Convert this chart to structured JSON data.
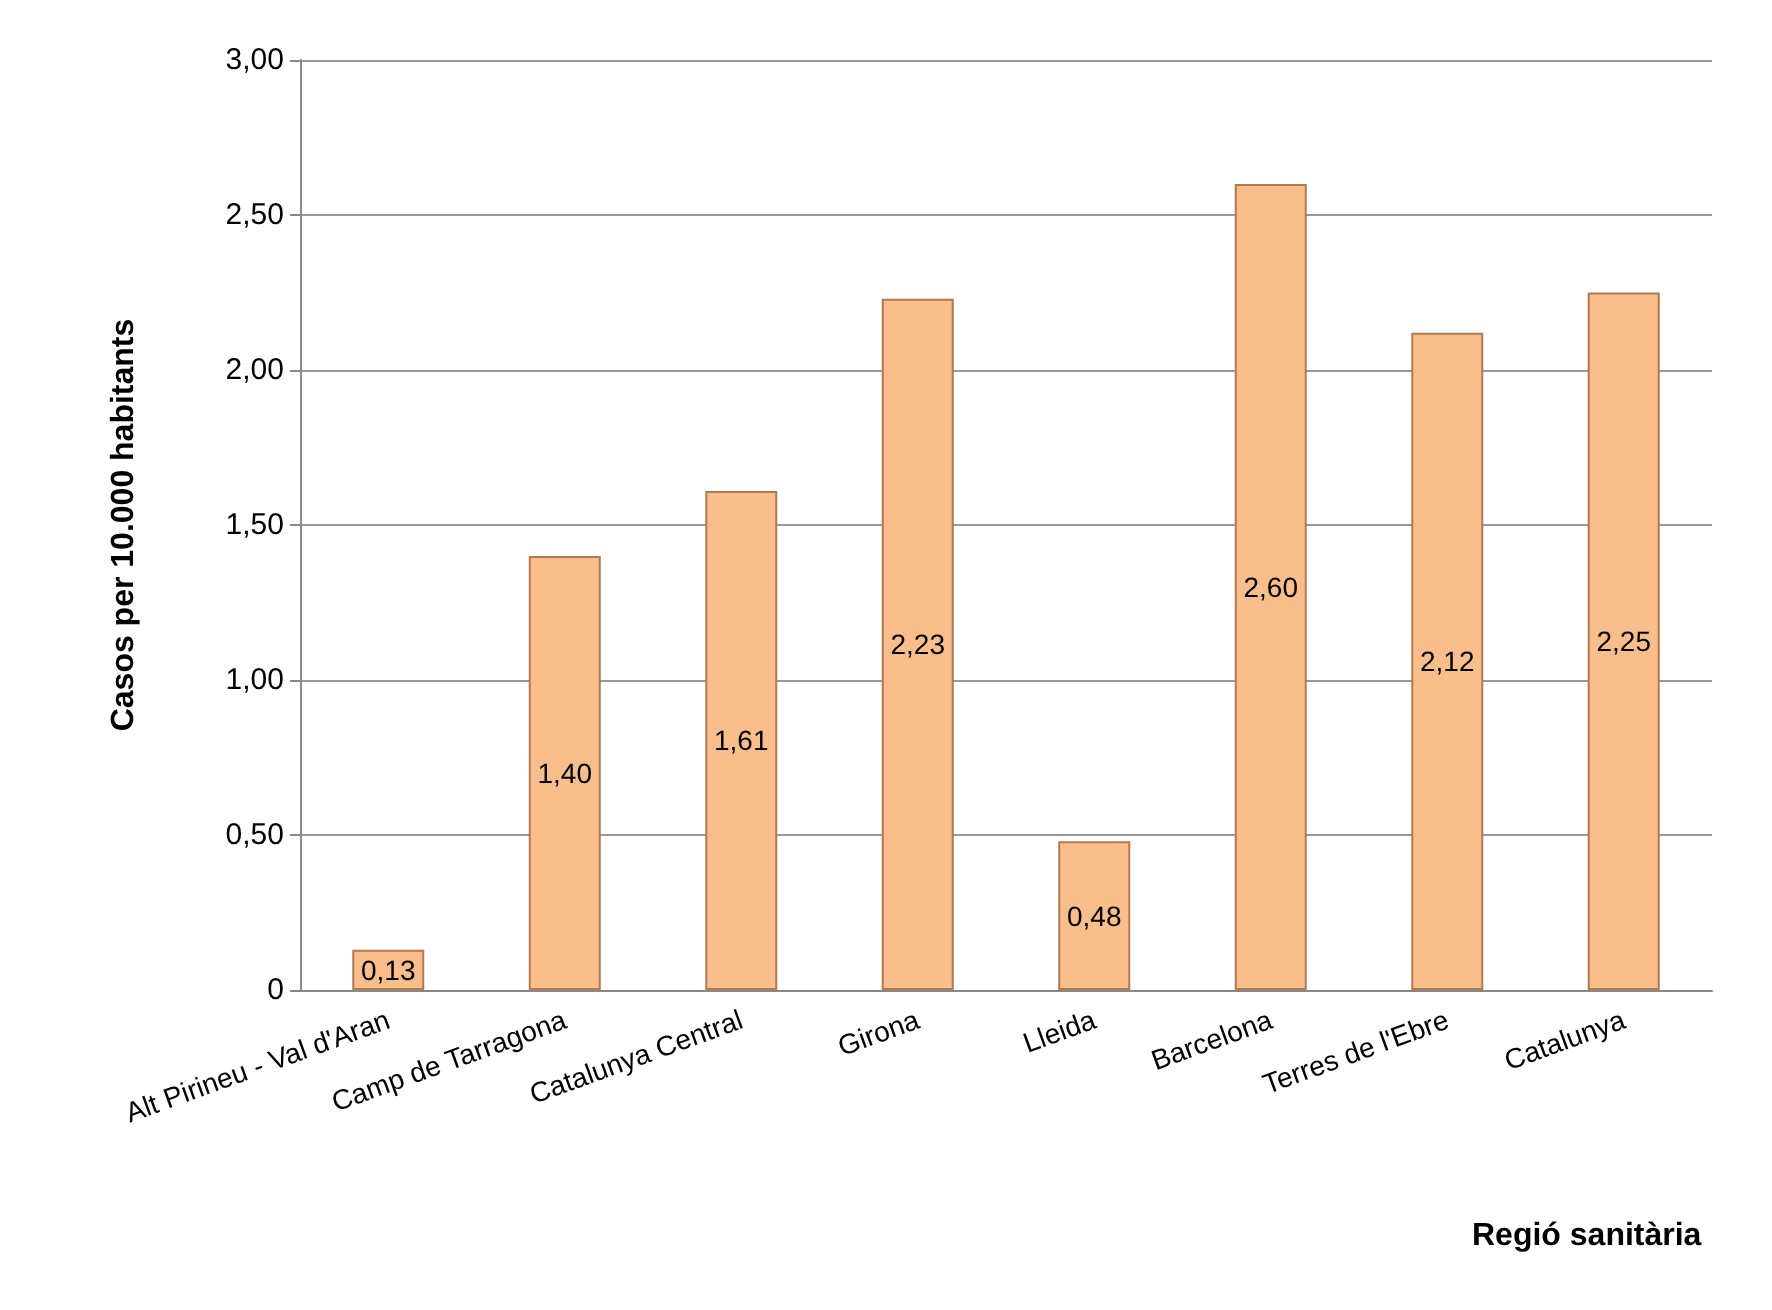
{
  "chart_data": {
    "type": "bar",
    "ylabel": "Casos per 10.000 habitants",
    "xlabel": "Regió sanitària",
    "categories": [
      "Alt Pirineu - Val d'Aran",
      "Camp de Tarragona",
      "Catalunya Central",
      "Girona",
      "Lleida",
      "Barcelona",
      "Terres de l'Ebre",
      "Catalunya"
    ],
    "values": [
      0.13,
      1.4,
      1.61,
      2.23,
      0.48,
      2.6,
      2.12,
      2.25
    ],
    "value_labels": [
      "0,13",
      "1,40",
      "1,61",
      "2,23",
      "0,48",
      "2,60",
      "2,12",
      "2,25"
    ],
    "color": "#f9be8c",
    "ylim": [
      0,
      3
    ],
    "yticks": [
      {
        "value": 0,
        "label": "0"
      },
      {
        "value": 0.5,
        "label": "0,50"
      },
      {
        "value": 1,
        "label": "1,00"
      },
      {
        "value": 1.5,
        "label": "1,50"
      },
      {
        "value": 2,
        "label": "2,00"
      },
      {
        "value": 2.5,
        "label": "2,50"
      },
      {
        "value": 3,
        "label": "3,00"
      }
    ],
    "grid": "y"
  }
}
